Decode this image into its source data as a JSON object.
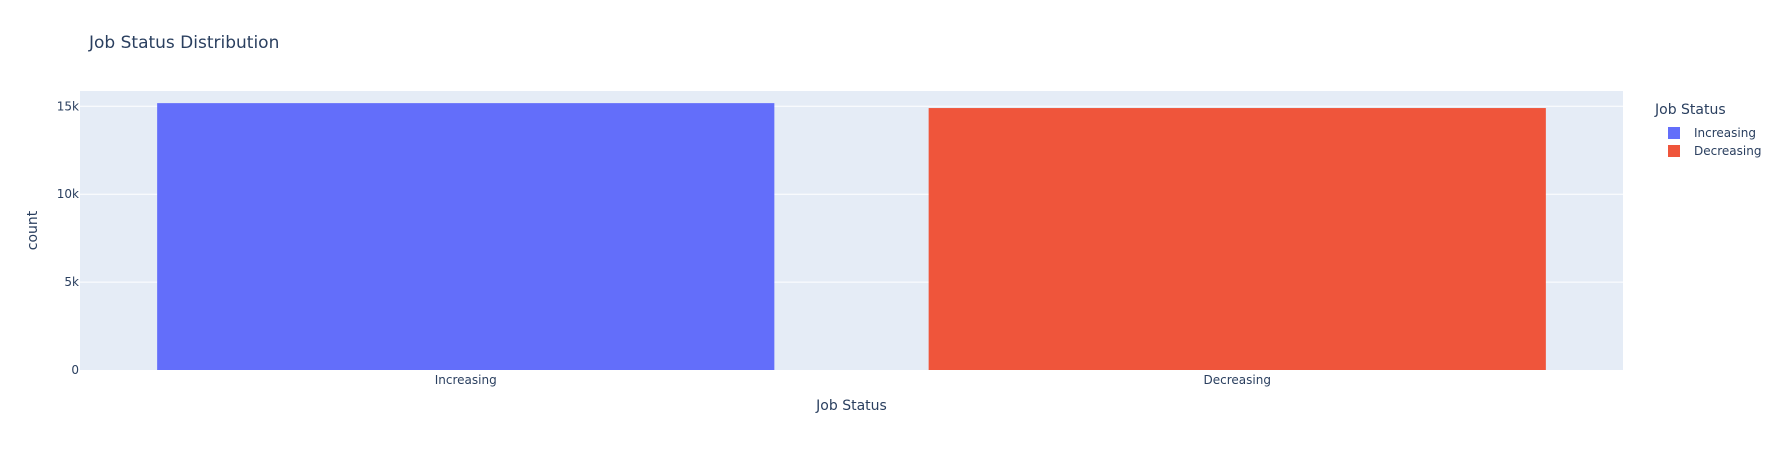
{
  "colors": {
    "plot_bg": "#E5ECF6",
    "gridline": "#ffffff",
    "text": "#2a3f5f",
    "increasing": "#636EFA",
    "decreasing": "#EF553B"
  },
  "legend": {
    "title": "Job Status",
    "items": [
      {
        "label": "Increasing",
        "color": "#636EFA"
      },
      {
        "label": "Decreasing",
        "color": "#EF553B"
      }
    ]
  },
  "chart_data": {
    "type": "bar",
    "title": "Job Status Distribution",
    "xlabel": "Job Status",
    "ylabel": "count",
    "categories": [
      "Increasing",
      "Decreasing"
    ],
    "series": [
      {
        "name": "Increasing",
        "color": "#636EFA",
        "values": [
          15180,
          null
        ]
      },
      {
        "name": "Decreasing",
        "color": "#EF553B",
        "values": [
          null,
          14900
        ]
      }
    ],
    "ylim": [
      0,
      15870
    ],
    "yticks": [
      0,
      5000,
      10000,
      15000
    ],
    "ytick_labels": [
      "0",
      "5k",
      "10k",
      "15k"
    ],
    "grid": true,
    "legend_position": "right"
  }
}
